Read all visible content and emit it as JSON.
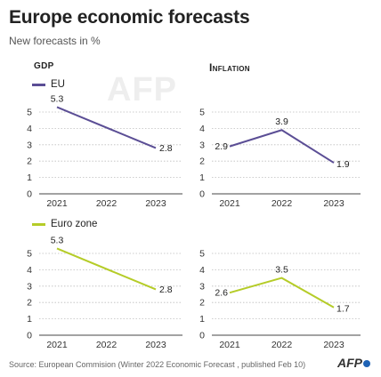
{
  "title": "Europe economic forecasts",
  "subtitle": "New forecasts in %",
  "source": "Source: European Commision (Winter 2022 Economic Forecast , published Feb 10)",
  "logo": "AFP",
  "watermark": "AFP",
  "legend": {
    "eu": {
      "label": "EU",
      "color": "#5b4e95"
    },
    "eurozone": {
      "label": "Euro zone",
      "color": "#b5cc28"
    }
  },
  "panels": {
    "gdp": "GDP",
    "inflation": "Inflation"
  },
  "chart_data": [
    {
      "type": "line",
      "title": "GDP",
      "series": [
        {
          "name": "EU",
          "color": "#5b4e95",
          "x": [
            2021,
            2023
          ],
          "values": [
            5.3,
            2.8
          ]
        }
      ],
      "x_ticks": [
        2021,
        2022,
        2023
      ],
      "ylim": [
        0,
        5
      ],
      "y_ticks": [
        0,
        1,
        2,
        3,
        4,
        5
      ],
      "grid": true
    },
    {
      "type": "line",
      "title": "Inflation",
      "series": [
        {
          "name": "EU",
          "color": "#5b4e95",
          "x": [
            2021,
            2022,
            2023
          ],
          "values": [
            2.9,
            3.9,
            1.9
          ]
        }
      ],
      "x_ticks": [
        2021,
        2022,
        2023
      ],
      "ylim": [
        0,
        5
      ],
      "y_ticks": [
        0,
        1,
        2,
        3,
        4,
        5
      ],
      "grid": true
    },
    {
      "type": "line",
      "title": "GDP",
      "series": [
        {
          "name": "Euro zone",
          "color": "#b5cc28",
          "x": [
            2021,
            2023
          ],
          "values": [
            5.3,
            2.8
          ]
        }
      ],
      "x_ticks": [
        2021,
        2022,
        2023
      ],
      "ylim": [
        0,
        5
      ],
      "y_ticks": [
        0,
        1,
        2,
        3,
        4,
        5
      ],
      "grid": true
    },
    {
      "type": "line",
      "title": "Inflation",
      "series": [
        {
          "name": "Euro zone",
          "color": "#b5cc28",
          "x": [
            2021,
            2022,
            2023
          ],
          "values": [
            2.6,
            3.5,
            1.7
          ]
        }
      ],
      "x_ticks": [
        2021,
        2022,
        2023
      ],
      "ylim": [
        0,
        5
      ],
      "y_ticks": [
        0,
        1,
        2,
        3,
        4,
        5
      ],
      "grid": true
    }
  ]
}
